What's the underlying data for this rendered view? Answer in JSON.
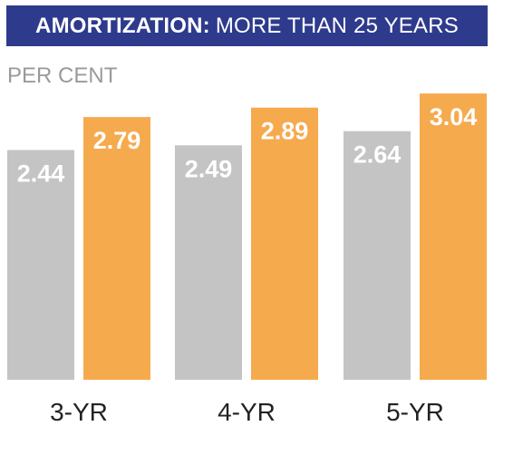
{
  "header": {
    "title_bold": "AMORTIZATION:",
    "title_rest": "MORE THAN 25 YEARS"
  },
  "colors": {
    "header_bg": "#2e3a8c",
    "series_a": "#c4c4c4",
    "series_b": "#f6aa4e"
  },
  "chart_data": {
    "type": "bar",
    "title": "AMORTIZATION: MORE THAN 25 YEARS",
    "ylabel": "PER CENT",
    "categories": [
      "3-YR",
      "4-YR",
      "5-YR"
    ],
    "series": [
      {
        "values": [
          2.44,
          2.49,
          2.64
        ]
      },
      {
        "values": [
          2.79,
          2.89,
          3.04
        ]
      }
    ],
    "ylim": [
      0,
      3.1
    ],
    "value_labels": true,
    "grid": false,
    "legend": "none"
  }
}
